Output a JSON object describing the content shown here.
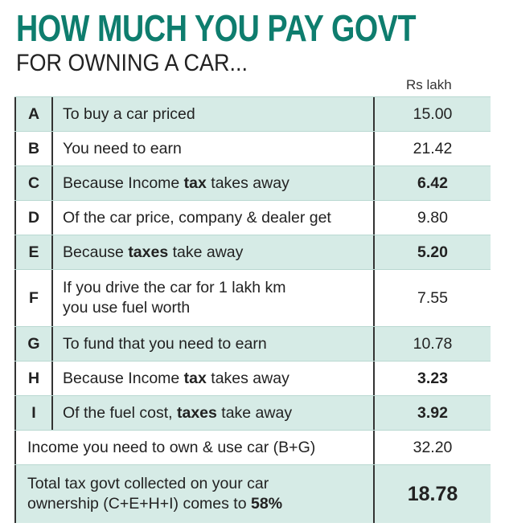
{
  "header": {
    "title": "HOW MUCH YOU PAY GOVT",
    "subtitle": "FOR OWNING A CAR...",
    "unit": "Rs lakh"
  },
  "table": {
    "rows": [
      {
        "letter": "A",
        "description": [
          {
            "text": "To buy a car priced"
          }
        ],
        "value": "15.00"
      },
      {
        "letter": "B",
        "description": [
          {
            "text": "You need to earn"
          }
        ],
        "value": "21.42"
      },
      {
        "letter": "C",
        "description": [
          {
            "text": "Because Income "
          },
          {
            "text": "tax",
            "bold": true
          },
          {
            "text": " takes away"
          }
        ],
        "value": "6.42",
        "value_bold": true
      },
      {
        "letter": "D",
        "description": [
          {
            "text": "Of the car price, company & dealer get"
          }
        ],
        "value": "9.80"
      },
      {
        "letter": "E",
        "description": [
          {
            "text": "Because "
          },
          {
            "text": "taxes",
            "bold": true
          },
          {
            "text": " take away"
          }
        ],
        "value": "5.20",
        "value_bold": true
      },
      {
        "letter": "F",
        "description": [
          {
            "text": "If you drive the car for 1 lakh km\nyou use fuel worth"
          }
        ],
        "value": "7.55"
      },
      {
        "letter": "G",
        "description": [
          {
            "text": "To fund that you need to earn"
          }
        ],
        "value": "10.78"
      },
      {
        "letter": "H",
        "description": [
          {
            "text": "Because Income "
          },
          {
            "text": "tax",
            "bold": true
          },
          {
            "text": " takes away"
          }
        ],
        "value": "3.23",
        "value_bold": true
      },
      {
        "letter": "I",
        "description": [
          {
            "text": "Of the fuel cost, "
          },
          {
            "text": "taxes",
            "bold": true
          },
          {
            "text": " take away"
          }
        ],
        "value": "3.92",
        "value_bold": true
      }
    ],
    "summary": [
      {
        "description": [
          {
            "text": "Income you need to own & use car (B+G)"
          }
        ],
        "value": "32.20"
      },
      {
        "description": [
          {
            "text": "Total tax govt collected on your car\nownership (C+E+H+I) comes to "
          },
          {
            "text": "58%",
            "bold": true
          }
        ],
        "value": "18.78",
        "value_bold": true
      }
    ]
  }
}
